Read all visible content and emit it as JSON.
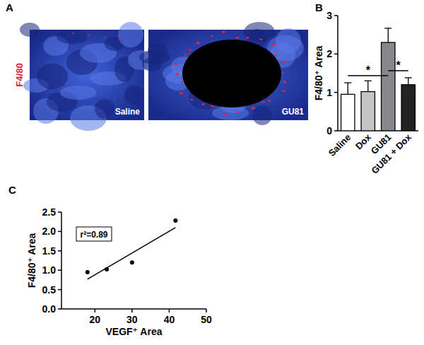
{
  "panel_labels": [
    "A",
    "B",
    "C"
  ],
  "images": {
    "stain_label": "F4/80",
    "labels": [
      "Saline",
      "GU81"
    ]
  },
  "chart_data": [
    {
      "type": "bar",
      "y_label": "F4/80⁺ Area",
      "categories": [
        "Saline",
        "Dox",
        "GU81",
        "GU81 + Dox"
      ],
      "values": [
        0.95,
        1.02,
        2.3,
        1.2
      ],
      "errors": [
        0.3,
        0.28,
        0.37,
        0.18
      ],
      "colors": [
        "#ffffff",
        "#c4c4c8",
        "#88888c",
        "#222222"
      ],
      "ylim": [
        0,
        3
      ],
      "yticks": [
        0,
        1,
        2,
        3
      ],
      "significance": [
        {
          "label": "*",
          "between": [
            0,
            2
          ]
        },
        {
          "label": "*",
          "between": [
            2,
            3
          ]
        }
      ]
    },
    {
      "type": "scatter",
      "x_label": "VEGF⁺ Area",
      "y_label": "F4/80⁺ Area",
      "x": [
        18,
        23.2,
        30,
        41.7
      ],
      "values": [
        0.95,
        1.02,
        1.2,
        2.28
      ],
      "color": "#000000",
      "xlim": [
        11,
        50
      ],
      "xticks": [
        20,
        30,
        40,
        50
      ],
      "ylim": [
        0,
        2.5
      ],
      "yticks": [
        {
          "value": 0,
          "label": "0.0"
        },
        0.5,
        {
          "value": 1,
          "label": "1.0"
        },
        1.5,
        {
          "value": 2,
          "label": "2.0"
        },
        2.5
      ],
      "fit_line": {
        "x": [
          18,
          41.7
        ],
        "values": [
          0.77,
          2.1
        ]
      },
      "annotation": "r²=0.89"
    }
  ]
}
